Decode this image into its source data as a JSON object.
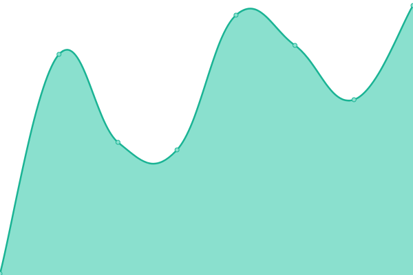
{
  "chart_data": {
    "type": "area",
    "categories": [
      null,
      null,
      null,
      null,
      null,
      null,
      null,
      null
    ],
    "series": [
      {
        "color": "#1ab394",
        "fill": "#8ae0ce",
        "values": [
          2,
          321,
          193,
          182,
          378,
          334,
          255,
          392
        ]
      }
    ],
    "ylim": [
      0,
      400
    ]
  }
}
